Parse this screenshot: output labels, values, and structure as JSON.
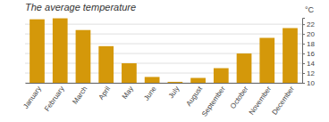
{
  "chart_data": {
    "type": "bar",
    "title": "The average temperature",
    "ylabel": "°C",
    "categories": [
      "January",
      "February",
      "March",
      "April",
      "May",
      "June",
      "July",
      "August",
      "September",
      "October",
      "November",
      "December"
    ],
    "values": [
      23.0,
      23.2,
      20.8,
      17.5,
      14.0,
      11.2,
      10.2,
      11.0,
      13.0,
      16.0,
      19.2,
      21.2
    ],
    "color": "#D4980A",
    "ylim": [
      10,
      23.3
    ],
    "yticks": [
      10,
      12,
      14,
      16,
      18,
      20,
      22
    ],
    "grid": true
  }
}
